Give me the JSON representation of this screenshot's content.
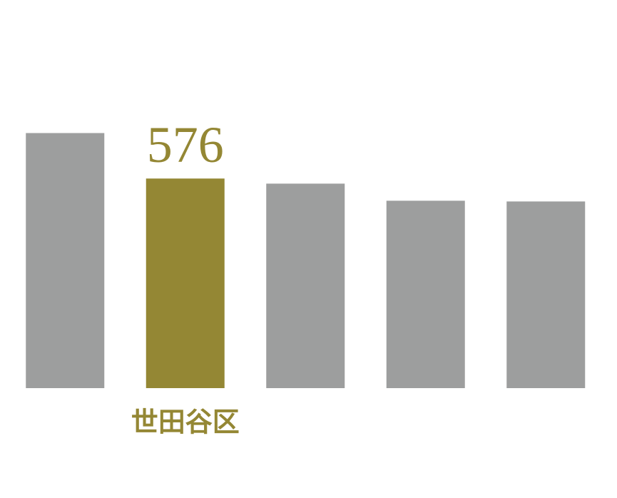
{
  "chart_data": {
    "type": "bar",
    "categories": [
      null,
      "世田谷区",
      null,
      null,
      null
    ],
    "values": [
      701,
      576,
      562,
      515,
      513
    ],
    "colors": [
      "#9d9e9e",
      "#948734",
      "#9d9e9e",
      "#9d9e9e",
      "#9d9e9e"
    ],
    "ylim": [
      0,
      800
    ]
  }
}
